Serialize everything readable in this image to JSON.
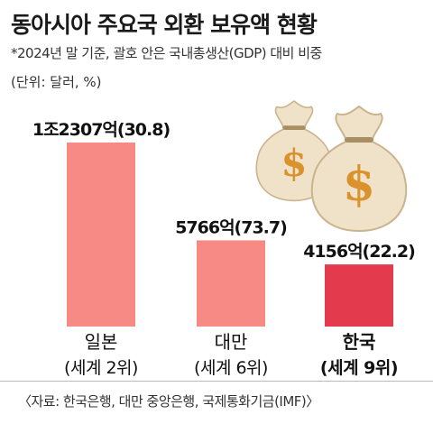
{
  "header": {
    "title": "동아시아 주요국 외환 보유액 현황",
    "note": "*2024년 말 기준, 괄호 안은 국내총생산(GDP) 대비 비중",
    "unit": "(단위: 달러, %)"
  },
  "footer": {
    "source": "〈자료: 한국은행, 대만 중앙은행, 국제통화기금(IMF)〉"
  },
  "colors": {
    "japan": "#f88a85",
    "taiwan": "#f88a85",
    "korea": "#e33a4e",
    "money_bag": "#efe2c8",
    "dollar_sign": "#d9922c"
  },
  "illustration": {
    "icon": "money-bag-icon",
    "symbol": "$"
  },
  "chart_data": {
    "type": "bar",
    "title": "동아시아 주요국 외환 보유액 현황",
    "unit": "(단위: 달러, %)",
    "categories": [
      "일본",
      "대만",
      "한국"
    ],
    "sublabels": [
      "(세계 2위)",
      "(세계 6위)",
      "(세계 9위)"
    ],
    "values": [
      12307,
      5766,
      4156
    ],
    "gdp_ratio": [
      30.8,
      73.7,
      22.2
    ],
    "data_labels": [
      "1조2307억(30.8)",
      "5766억(73.7)",
      "4156억(22.2)"
    ],
    "highlight": "한국",
    "ylim": [
      0,
      12307
    ],
    "grid": false,
    "legend": "none"
  }
}
